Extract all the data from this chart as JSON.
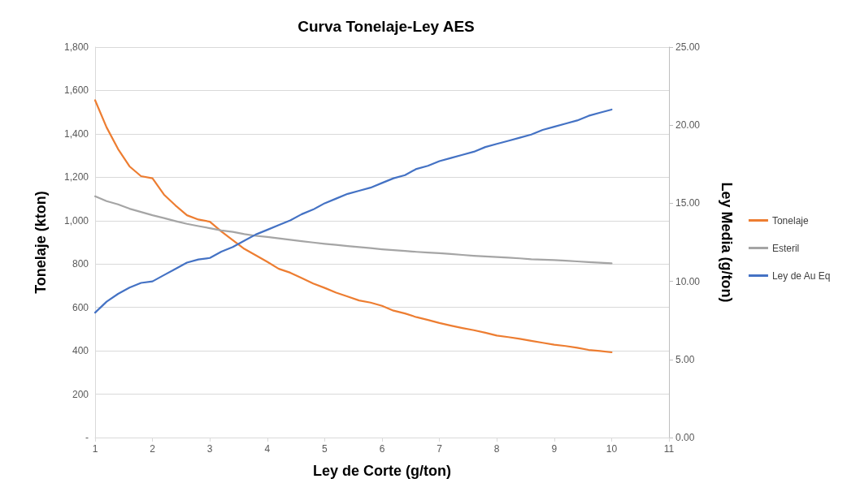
{
  "chart_data": {
    "type": "line",
    "title": "Curva Tonelaje-Ley AES",
    "xlabel": "Ley de Corte (g/ton)",
    "ylabel": "Tonelaje (kton)",
    "y2label": "Ley Media (g/ton)",
    "x": [
      1,
      1.2,
      1.4,
      1.6,
      1.8,
      2,
      2.2,
      2.4,
      2.6,
      2.8,
      3,
      3.2,
      3.4,
      3.6,
      3.8,
      4,
      4.2,
      4.4,
      4.6,
      4.8,
      5,
      5.2,
      5.4,
      5.6,
      5.8,
      6,
      6.2,
      6.4,
      6.6,
      6.8,
      7,
      7.2,
      7.4,
      7.6,
      7.8,
      8,
      8.2,
      8.4,
      8.6,
      8.8,
      9,
      9.2,
      9.4,
      9.6,
      9.8,
      10
    ],
    "series": [
      {
        "name": "Tonelaje",
        "color": "#ed7d31",
        "values": [
          1555,
          1430,
          1330,
          1250,
          1205,
          1195,
          1120,
          1070,
          1025,
          1005,
          995,
          950,
          910,
          870,
          840,
          810,
          778,
          760,
          735,
          710,
          690,
          668,
          650,
          632,
          622,
          607,
          585,
          572,
          555,
          542,
          528,
          516,
          505,
          495,
          483,
          470,
          463,
          455,
          446,
          437,
          428,
          422,
          414,
          404,
          399,
          393
        ]
      },
      {
        "name": "Esteril",
        "color": "#a5a5a5",
        "values": [
          1112,
          1090,
          1075,
          1055,
          1040,
          1025,
          1012,
          998,
          985,
          975,
          965,
          955,
          948,
          938,
          930,
          925,
          918,
          912,
          905,
          899,
          893,
          888,
          883,
          878,
          873,
          868,
          864,
          860,
          856,
          853,
          850,
          846,
          842,
          838,
          835,
          832,
          829,
          826,
          822,
          820,
          818,
          815,
          812,
          809,
          806,
          803
        ]
      },
      {
        "name": "Ley de Au Eq",
        "color": "#4472c4",
        "axis": "y2",
        "values": [
          8.0,
          8.7,
          9.2,
          9.6,
          9.9,
          10.0,
          10.4,
          10.8,
          11.2,
          11.4,
          11.5,
          11.9,
          12.2,
          12.6,
          13.0,
          13.3,
          13.6,
          13.9,
          14.3,
          14.6,
          15.0,
          15.3,
          15.6,
          15.8,
          16.0,
          16.3,
          16.6,
          16.8,
          17.2,
          17.4,
          17.7,
          17.9,
          18.1,
          18.3,
          18.6,
          18.8,
          19.0,
          19.2,
          19.4,
          19.7,
          19.9,
          20.1,
          20.3,
          20.6,
          20.8,
          21.0
        ]
      }
    ],
    "xlim": [
      1,
      11
    ],
    "xticks": [
      1,
      2,
      3,
      4,
      5,
      6,
      7,
      8,
      9,
      10,
      11
    ],
    "ylim": [
      0,
      1800
    ],
    "yticks": [
      {
        "value": 0,
        "label": "-"
      },
      {
        "value": 200,
        "label": "200"
      },
      {
        "value": 400,
        "label": "400"
      },
      {
        "value": 600,
        "label": "600"
      },
      {
        "value": 800,
        "label": "800"
      },
      {
        "value": 1000,
        "label": "1,000"
      },
      {
        "value": 1200,
        "label": "1,200"
      },
      {
        "value": 1400,
        "label": "1,400"
      },
      {
        "value": 1600,
        "label": "1,600"
      },
      {
        "value": 1800,
        "label": "1,800"
      }
    ],
    "y2lim": [
      0,
      25
    ],
    "y2ticks": [
      {
        "value": 0,
        "label": "0.00"
      },
      {
        "value": 5,
        "label": "5.00"
      },
      {
        "value": 10,
        "label": "10.00"
      },
      {
        "value": 15,
        "label": "15.00"
      },
      {
        "value": 20,
        "label": "20.00"
      },
      {
        "value": 25,
        "label": "25.00"
      }
    ],
    "grid": "y",
    "legend": "right",
    "marker": "none",
    "line_style": "solid"
  }
}
